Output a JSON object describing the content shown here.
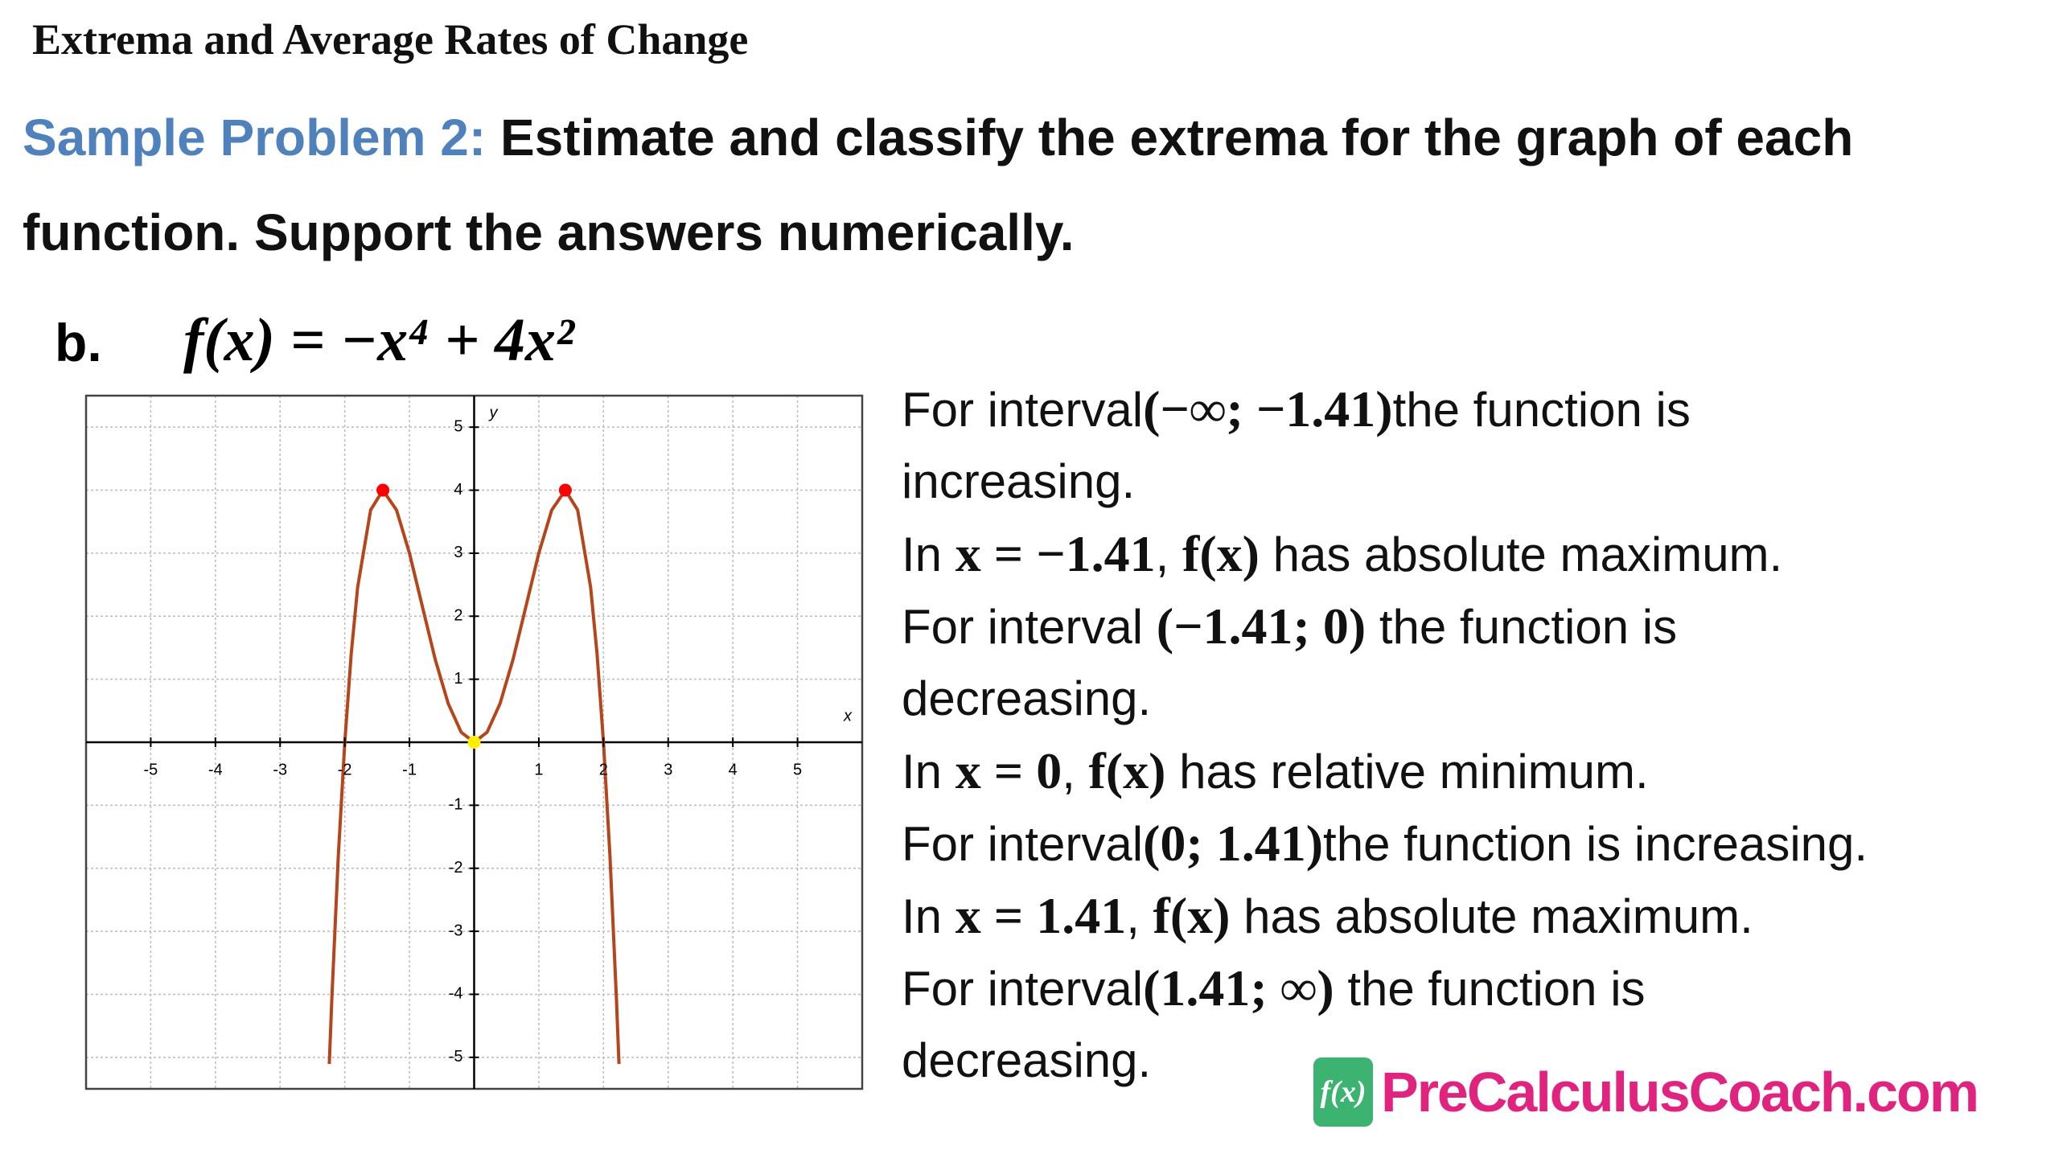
{
  "header": {
    "title": "Extrema and Average Rates of Change"
  },
  "problem": {
    "label": "Sample Problem 2:",
    "text": "Estimate and classify the extrema for the graph of each function. Support the answers numerically.",
    "part": "b.",
    "function": "f(x) = −x⁴ + 4x²"
  },
  "graph": {
    "x_label": "x",
    "y_label": "y",
    "xlim": [
      -6,
      6
    ],
    "ylim": [
      -5.5,
      5.5
    ],
    "xticks": [
      -5,
      -4,
      -3,
      -2,
      -1,
      1,
      2,
      3,
      4,
      5
    ],
    "yticks": [
      -5,
      -4,
      -3,
      -2,
      -1,
      1,
      2,
      3,
      4,
      5
    ],
    "grid": true,
    "curve_color": "#b5451b",
    "points": [
      {
        "x": -1.41,
        "y": 4,
        "color": "#ff0000"
      },
      {
        "x": 0,
        "y": 0,
        "color": "#ffee00"
      },
      {
        "x": 1.41,
        "y": 4,
        "color": "#ff0000"
      }
    ]
  },
  "explanation": {
    "lines": [
      [
        {
          "text": "For interval"
        },
        {
          "text": "(−∞; −1.41)",
          "math": true
        },
        {
          "text": "the function is"
        }
      ],
      [
        {
          "text": "increasing."
        }
      ],
      [
        {
          "text": "In "
        },
        {
          "text": "x = −1.41",
          "math": true
        },
        {
          "text": ", "
        },
        {
          "text": "f(x)",
          "math": true
        },
        {
          "text": " has absolute maximum."
        }
      ],
      [
        {
          "text": "For interval "
        },
        {
          "text": "(−1.41; 0)",
          "math": true
        },
        {
          "text": " the function is"
        }
      ],
      [
        {
          "text": "decreasing."
        }
      ],
      [
        {
          "text": "In "
        },
        {
          "text": "x = 0",
          "math": true
        },
        {
          "text": ", "
        },
        {
          "text": "f(x)",
          "math": true
        },
        {
          "text": " has relative minimum."
        }
      ],
      [
        {
          "text": "For interval"
        },
        {
          "text": "(0; 1.41)",
          "math": true
        },
        {
          "text": "the function is increasing."
        }
      ],
      [
        {
          "text": "In "
        },
        {
          "text": "x = 1.41",
          "math": true
        },
        {
          "text": ", "
        },
        {
          "text": "f(x)",
          "math": true
        },
        {
          "text": " has absolute maximum."
        }
      ],
      [
        {
          "text": "For interval"
        },
        {
          "text": "(1.41; ∞)",
          "math": true
        },
        {
          "text": " the function is"
        }
      ],
      [
        {
          "text": "decreasing."
        }
      ]
    ]
  },
  "logo": {
    "icon": "f(x)",
    "text": "PreCalculusCoach.com"
  }
}
